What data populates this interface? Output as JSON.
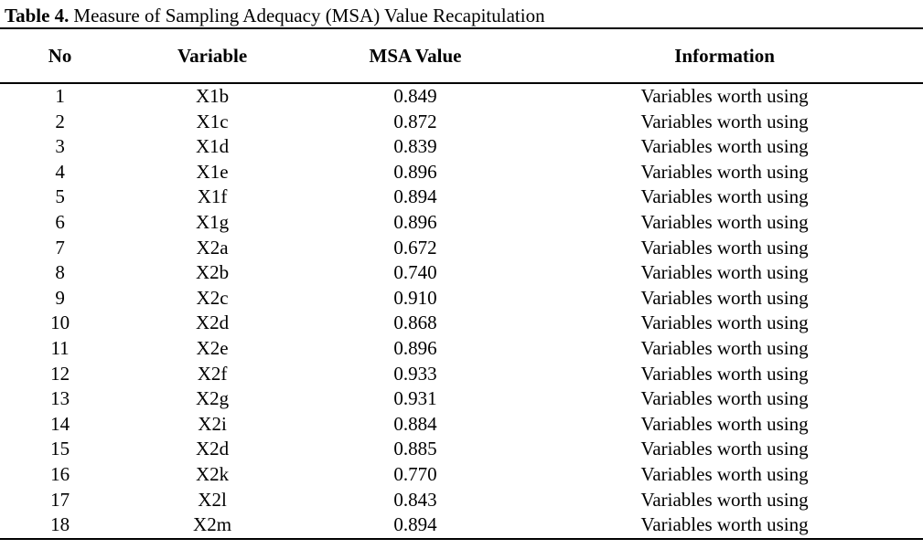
{
  "caption": {
    "label": "Table 4.",
    "text": "Measure of Sampling Adequacy (MSA) Value Recapitulation"
  },
  "table": {
    "headers": [
      "No",
      "Variable",
      "MSA Value",
      "Information"
    ],
    "rows": [
      {
        "no": "1",
        "variable": "X1b",
        "msa": "0.849",
        "information": "Variables worth using"
      },
      {
        "no": "2",
        "variable": "X1c",
        "msa": "0.872",
        "information": "Variables worth using"
      },
      {
        "no": "3",
        "variable": "X1d",
        "msa": "0.839",
        "information": "Variables worth using"
      },
      {
        "no": "4",
        "variable": "X1e",
        "msa": "0.896",
        "information": "Variables worth using"
      },
      {
        "no": "5",
        "variable": "X1f",
        "msa": "0.894",
        "information": "Variables worth using"
      },
      {
        "no": "6",
        "variable": "X1g",
        "msa": "0.896",
        "information": "Variables worth using"
      },
      {
        "no": "7",
        "variable": "X2a",
        "msa": "0.672",
        "information": "Variables worth using"
      },
      {
        "no": "8",
        "variable": "X2b",
        "msa": "0.740",
        "information": "Variables worth using"
      },
      {
        "no": "9",
        "variable": "X2c",
        "msa": "0.910",
        "information": "Variables worth using"
      },
      {
        "no": "10",
        "variable": "X2d",
        "msa": "0.868",
        "information": "Variables worth using"
      },
      {
        "no": "11",
        "variable": "X2e",
        "msa": "0.896",
        "information": "Variables worth using"
      },
      {
        "no": "12",
        "variable": "X2f",
        "msa": "0.933",
        "information": "Variables worth using"
      },
      {
        "no": "13",
        "variable": "X2g",
        "msa": "0.931",
        "information": "Variables worth using"
      },
      {
        "no": "14",
        "variable": "X2i",
        "msa": "0.884",
        "information": "Variables worth using"
      },
      {
        "no": "15",
        "variable": "X2d",
        "msa": "0.885",
        "information": "Variables worth using"
      },
      {
        "no": "16",
        "variable": "X2k",
        "msa": "0.770",
        "information": "Variables worth using"
      },
      {
        "no": "17",
        "variable": "X2l",
        "msa": "0.843",
        "information": "Variables worth using"
      },
      {
        "no": "18",
        "variable": "X2m",
        "msa": "0.894",
        "information": "Variables worth using"
      }
    ]
  },
  "colors": {
    "text": "#000000",
    "background": "#ffffff",
    "rule": "#000000"
  }
}
